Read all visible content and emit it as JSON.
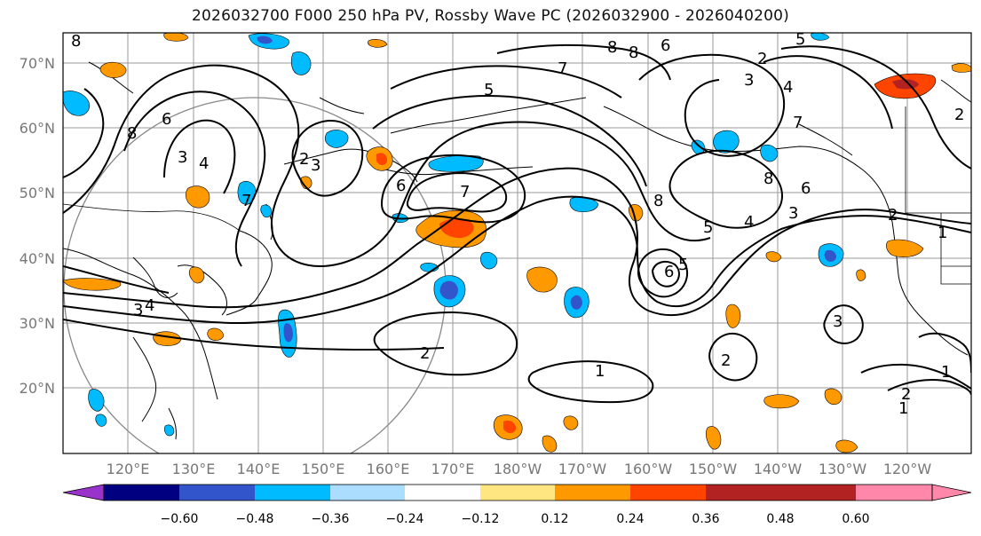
{
  "title": "2026032700 F000 250 hPa PV, Rossby Wave PC (2026032900 - 2026040200)",
  "map": {
    "lat_labels": [
      "70°N",
      "60°N",
      "50°N",
      "40°N",
      "30°N",
      "20°N"
    ],
    "lon_labels": [
      "120°E",
      "130°E",
      "140°E",
      "150°E",
      "160°E",
      "170°E",
      "180°W",
      "170°W",
      "160°W",
      "150°W",
      "140°W",
      "130°W",
      "120°W"
    ],
    "contour_labels": [
      "8",
      "7",
      "6",
      "5",
      "4",
      "3",
      "2",
      "1"
    ],
    "grid_color": "#9a9a9a"
  },
  "colorbar": {
    "colors": [
      "#9933cc",
      "#000080",
      "#3355cc",
      "#00bbff",
      "#aaddff",
      "#ffffff",
      "#ffe680",
      "#ff9900",
      "#ff4400",
      "#b22222",
      "#ff88aa"
    ],
    "tick_labels": [
      "−0.60",
      "−0.48",
      "−0.36",
      "−0.24",
      "−0.12",
      "0.12",
      "0.24",
      "0.36",
      "0.48",
      "0.60"
    ]
  }
}
